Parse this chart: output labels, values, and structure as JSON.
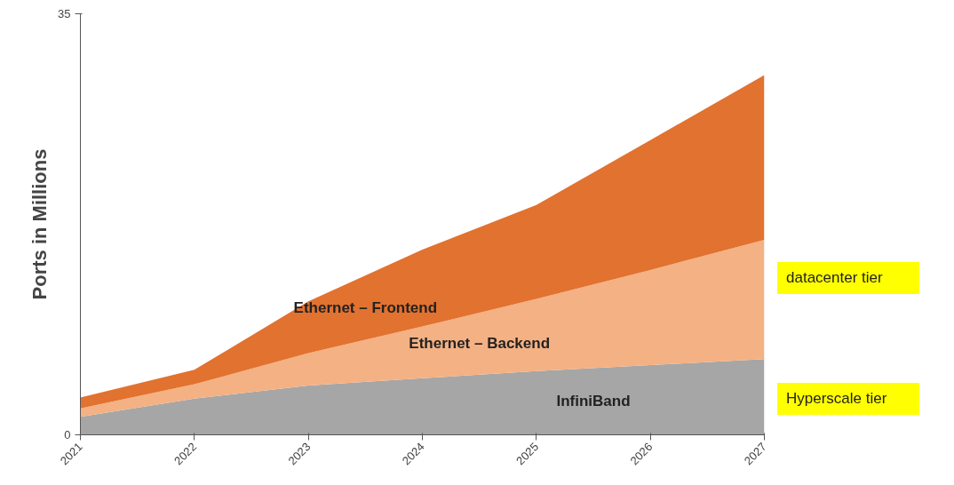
{
  "chart_data": {
    "type": "area",
    "stacked": true,
    "ylabel": "Ports in Millions",
    "x": [
      2021,
      2022,
      2023,
      2024,
      2025,
      2026,
      2027
    ],
    "series": [
      {
        "name": "InfiniBand",
        "color": "#a6a6a6",
        "values": [
          1.5,
          3.0,
          4.1,
          4.7,
          5.3,
          5.8,
          6.3
        ]
      },
      {
        "name": "Ethernet – Backend",
        "color": "#f4b183",
        "values": [
          0.7,
          1.2,
          2.7,
          4.3,
          6.0,
          7.9,
          9.9
        ]
      },
      {
        "name": "Ethernet – Frontend",
        "color": "#e2722f",
        "values": [
          0.9,
          1.2,
          4.3,
          6.4,
          7.8,
          10.8,
          13.7
        ]
      }
    ],
    "annotations": [
      "datacenter tier",
      "Hyperscale tier"
    ],
    "xlim": [
      2021,
      2027
    ],
    "xticks": [
      2021,
      2022,
      2023,
      2024,
      2025,
      2026,
      2027
    ],
    "ylim": [
      0,
      35
    ],
    "yticks": [
      0,
      35
    ],
    "grid": false
  }
}
